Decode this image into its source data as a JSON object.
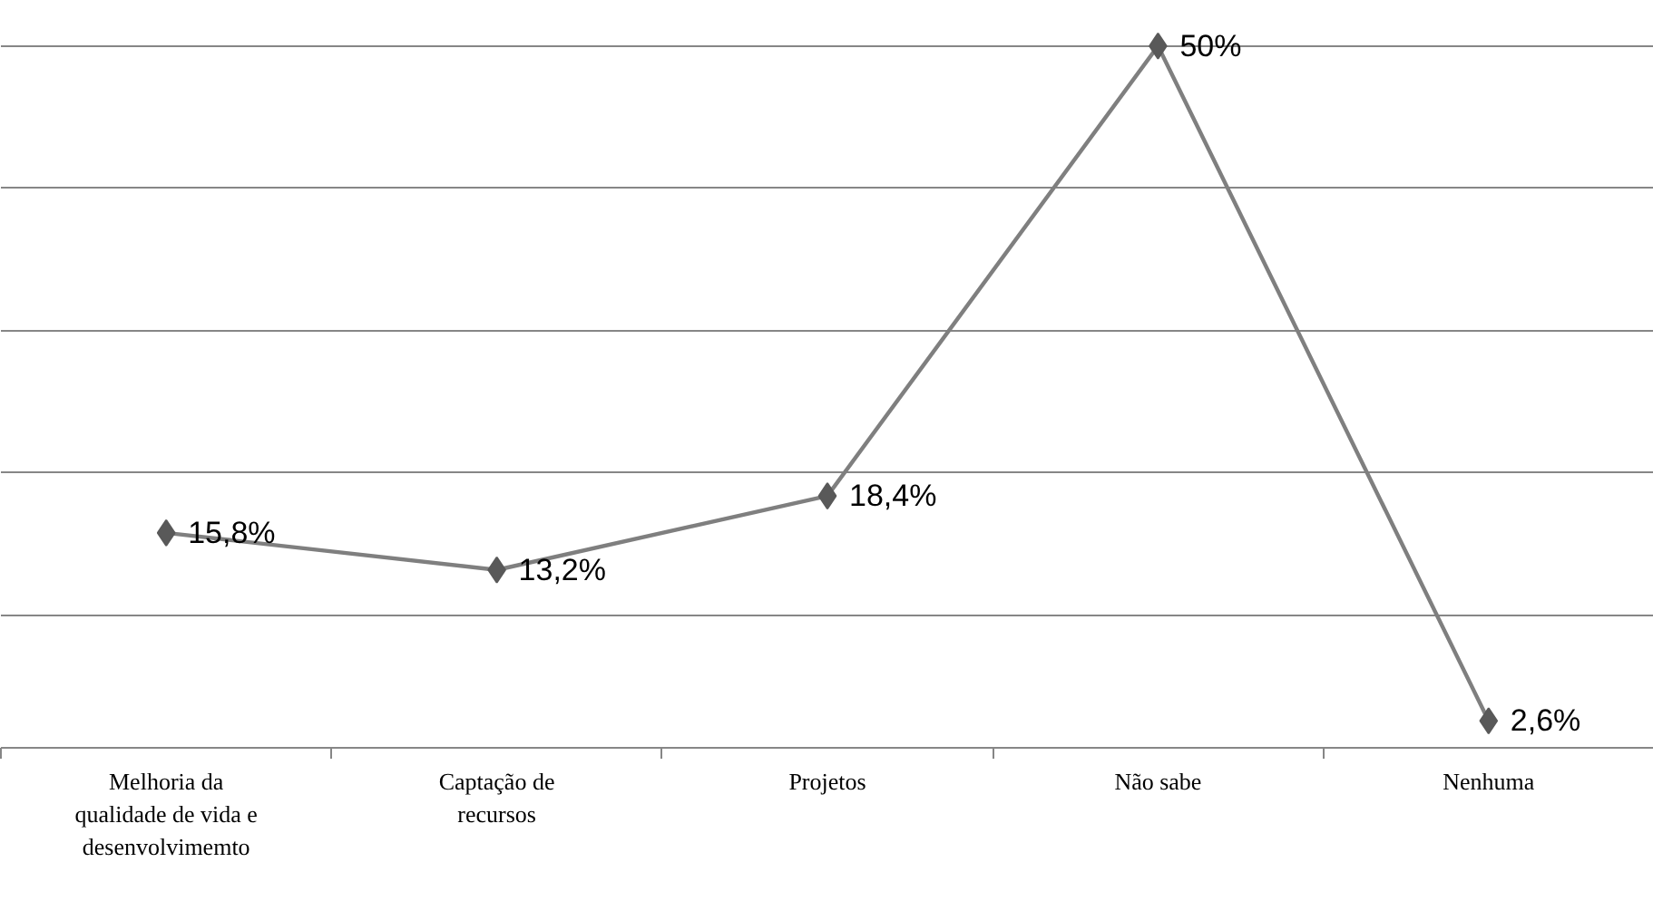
{
  "chart_data": {
    "type": "line",
    "categories": [
      "Melhoria da qualidade de vida e desenvolvimemto",
      "Captação de recursos",
      "Projetos",
      "Não sabe",
      "Nenhuma"
    ],
    "series": [
      {
        "color": "#7f7f7f",
        "values": [
          15.8,
          13.2,
          18.4,
          50,
          2.6
        ],
        "value_labels": [
          "15,8%",
          "13,2%",
          "18,4%",
          "50%",
          "2,6%"
        ]
      }
    ],
    "tick_labels": "x",
    "grid": "y",
    "marker": "diamond",
    "line_style": "solid"
  }
}
